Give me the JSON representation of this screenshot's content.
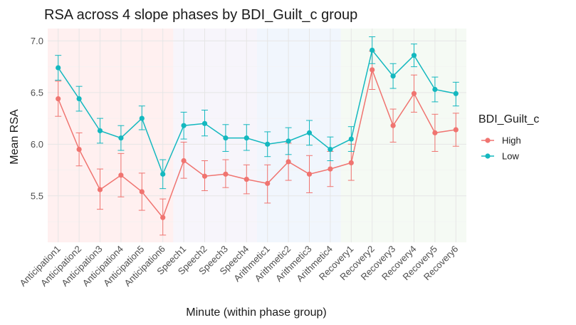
{
  "chart_data": {
    "type": "line",
    "title": "RSA across 4 slope phases by BDI_Guilt_c group",
    "xlabel": "Minute (within phase group)",
    "ylabel": "Mean RSA",
    "ylim": [
      5.05,
      7.12
    ],
    "yticks": [
      5.5,
      6.0,
      6.5,
      7.0
    ],
    "ytick_labels": [
      "5.5",
      "6.0",
      "6.5",
      "7.0"
    ],
    "categories": [
      "Anticipation1",
      "Anticipation2",
      "Anticipation3",
      "Anticipation4",
      "Anticipation5",
      "Anticipation6",
      "Speech1",
      "Speech2",
      "Speech3",
      "Speech4",
      "Arithmetic1",
      "Arithmetic2",
      "Arithmetic3",
      "Arithmetic4",
      "Recovery1",
      "Recovery2",
      "Recovery3",
      "Recovery4",
      "Recovery5",
      "Recovery6"
    ],
    "phases": [
      {
        "start": 0,
        "end": 5,
        "color": "#fff0f0"
      },
      {
        "start": 6,
        "end": 9,
        "color": "#f7f5fb"
      },
      {
        "start": 10,
        "end": 13,
        "color": "#f1f6fd"
      },
      {
        "start": 14,
        "end": 19,
        "color": "#f5faf4"
      }
    ],
    "legend": {
      "title": "BDI_Guilt_c",
      "position": "right"
    },
    "grid": true,
    "series": [
      {
        "name": "High",
        "color": "#f07470",
        "values": [
          6.44,
          5.95,
          5.56,
          5.7,
          5.54,
          5.29,
          5.84,
          5.69,
          5.71,
          5.66,
          5.62,
          5.83,
          5.71,
          5.76,
          5.82,
          6.72,
          6.18,
          6.49,
          6.11,
          6.14
        ],
        "lower": [
          6.27,
          5.79,
          5.37,
          5.49,
          5.36,
          5.12,
          5.67,
          5.55,
          5.58,
          5.52,
          5.43,
          5.65,
          5.53,
          5.59,
          5.65,
          6.53,
          6.02,
          6.31,
          5.93,
          5.98
        ],
        "upper": [
          6.61,
          6.11,
          5.76,
          5.91,
          5.72,
          5.47,
          6.02,
          5.84,
          5.85,
          5.8,
          5.8,
          6.01,
          5.89,
          5.93,
          6.0,
          6.9,
          6.34,
          6.67,
          6.29,
          6.3
        ]
      },
      {
        "name": "Low",
        "color": "#14b8bf",
        "values": [
          6.74,
          6.44,
          6.13,
          6.06,
          6.25,
          5.71,
          6.18,
          6.2,
          6.06,
          6.06,
          6.0,
          6.03,
          6.11,
          5.95,
          6.05,
          6.91,
          6.66,
          6.86,
          6.53,
          6.49
        ],
        "lower": [
          6.62,
          6.32,
          6.01,
          5.94,
          6.14,
          5.57,
          6.05,
          6.08,
          5.93,
          5.94,
          5.88,
          5.9,
          5.99,
          5.84,
          5.93,
          6.78,
          6.54,
          6.75,
          6.41,
          6.37
        ],
        "upper": [
          6.86,
          6.56,
          6.25,
          6.18,
          6.37,
          5.85,
          6.31,
          6.33,
          6.19,
          6.19,
          6.12,
          6.16,
          6.23,
          6.07,
          6.17,
          7.04,
          6.78,
          6.97,
          6.65,
          6.6
        ]
      }
    ]
  }
}
